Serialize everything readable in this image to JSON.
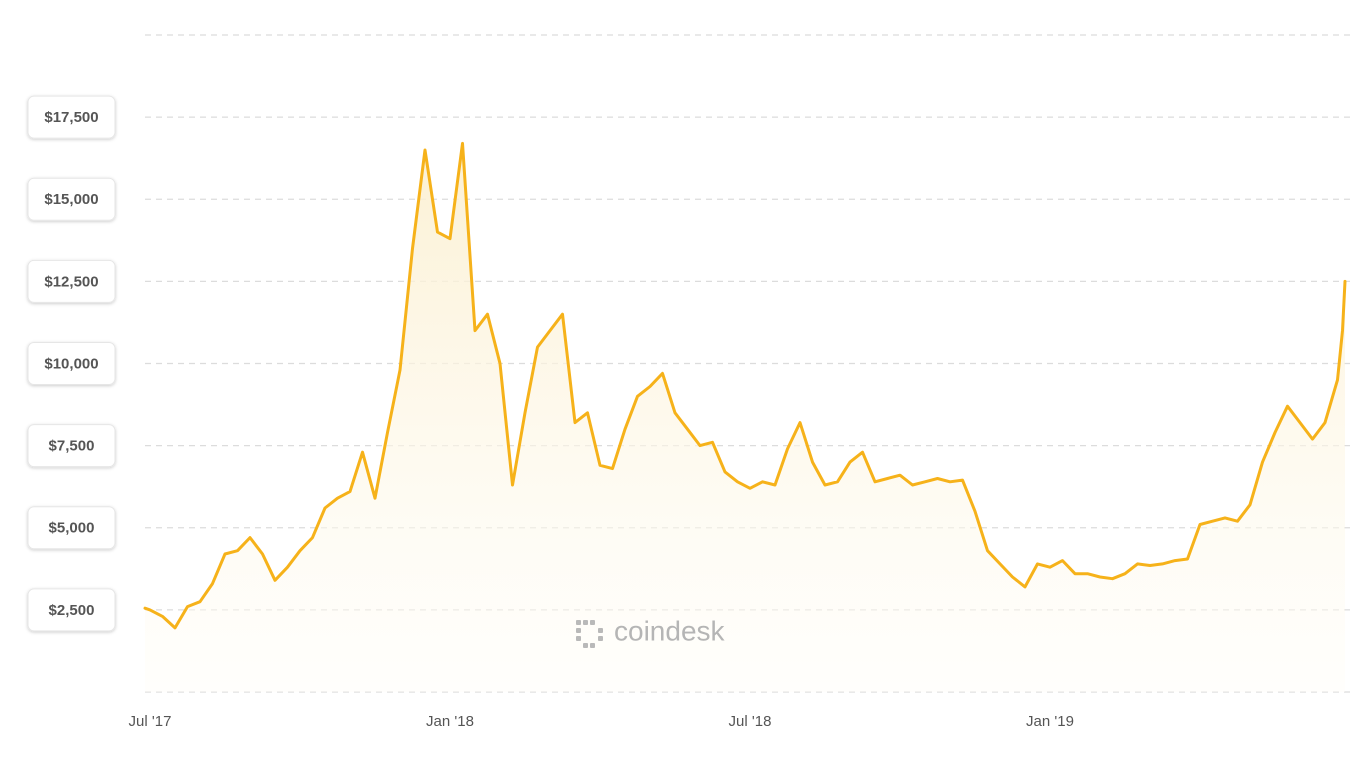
{
  "chart_data": {
    "type": "line",
    "color": "#f6b21a",
    "grid": true,
    "watermark": "coindesk",
    "ylim": [
      0,
      20000
    ],
    "yticks": [
      {
        "value": 2500,
        "label": "$2,500"
      },
      {
        "value": 5000,
        "label": "$5,000"
      },
      {
        "value": 7500,
        "label": "$7,500"
      },
      {
        "value": 10000,
        "label": "$10,000"
      },
      {
        "value": 12500,
        "label": "$12,500"
      },
      {
        "value": 15000,
        "label": "$15,000"
      },
      {
        "value": 17500,
        "label": "$17,500"
      }
    ],
    "xlim": [
      -0.1,
      23.9
    ],
    "xticks": [
      {
        "value": 0,
        "label": "Jul '17"
      },
      {
        "value": 6,
        "label": "Jan '18"
      },
      {
        "value": 12,
        "label": "Jul '18"
      },
      {
        "value": 18,
        "label": "Jan '19"
      }
    ],
    "x": [
      -0.1,
      0,
      0.25,
      0.5,
      0.75,
      1,
      1.25,
      1.5,
      1.75,
      2,
      2.25,
      2.5,
      2.75,
      3,
      3.25,
      3.5,
      3.75,
      4,
      4.25,
      4.5,
      4.75,
      5,
      5.25,
      5.5,
      5.75,
      6,
      6.25,
      6.5,
      6.75,
      7,
      7.25,
      7.5,
      7.75,
      8,
      8.25,
      8.5,
      8.75,
      9,
      9.25,
      9.5,
      9.75,
      10,
      10.25,
      10.5,
      10.75,
      11,
      11.25,
      11.5,
      11.75,
      12,
      12.25,
      12.5,
      12.75,
      13,
      13.25,
      13.5,
      13.75,
      14,
      14.25,
      14.5,
      14.75,
      15,
      15.25,
      15.5,
      15.75,
      16,
      16.25,
      16.5,
      16.75,
      17,
      17.25,
      17.5,
      17.75,
      18,
      18.25,
      18.5,
      18.75,
      19,
      19.25,
      19.5,
      19.75,
      20,
      20.25,
      20.5,
      20.75,
      21,
      21.25,
      21.5,
      21.75,
      22,
      22.25,
      22.5,
      22.75,
      23,
      23.25,
      23.5,
      23.75,
      23.85,
      23.9
    ],
    "values": [
      2550,
      2500,
      2300,
      1950,
      2600,
      2750,
      3300,
      4200,
      4300,
      4700,
      4200,
      3400,
      3800,
      4300,
      4700,
      5600,
      5900,
      6100,
      7300,
      5900,
      7900,
      9800,
      13500,
      16500,
      14000,
      13800,
      16700,
      11000,
      11500,
      10000,
      6300,
      8500,
      10500,
      11000,
      11500,
      8200,
      8500,
      6900,
      6800,
      8000,
      9000,
      9300,
      9700,
      8500,
      8000,
      7500,
      7600,
      6700,
      6400,
      6200,
      6400,
      6300,
      7400,
      8200,
      7000,
      6300,
      6400,
      7000,
      7300,
      6400,
      6500,
      6600,
      6300,
      6400,
      6500,
      6400,
      6450,
      5500,
      4300,
      3900,
      3500,
      3200,
      3900,
      3800,
      4000,
      3600,
      3600,
      3500,
      3450,
      3600,
      3900,
      3850,
      3900,
      4000,
      4050,
      5100,
      5200,
      5300,
      5200,
      5700,
      7000,
      7900,
      8700,
      8200,
      7700,
      8200,
      9500,
      11000,
      12500
    ]
  }
}
